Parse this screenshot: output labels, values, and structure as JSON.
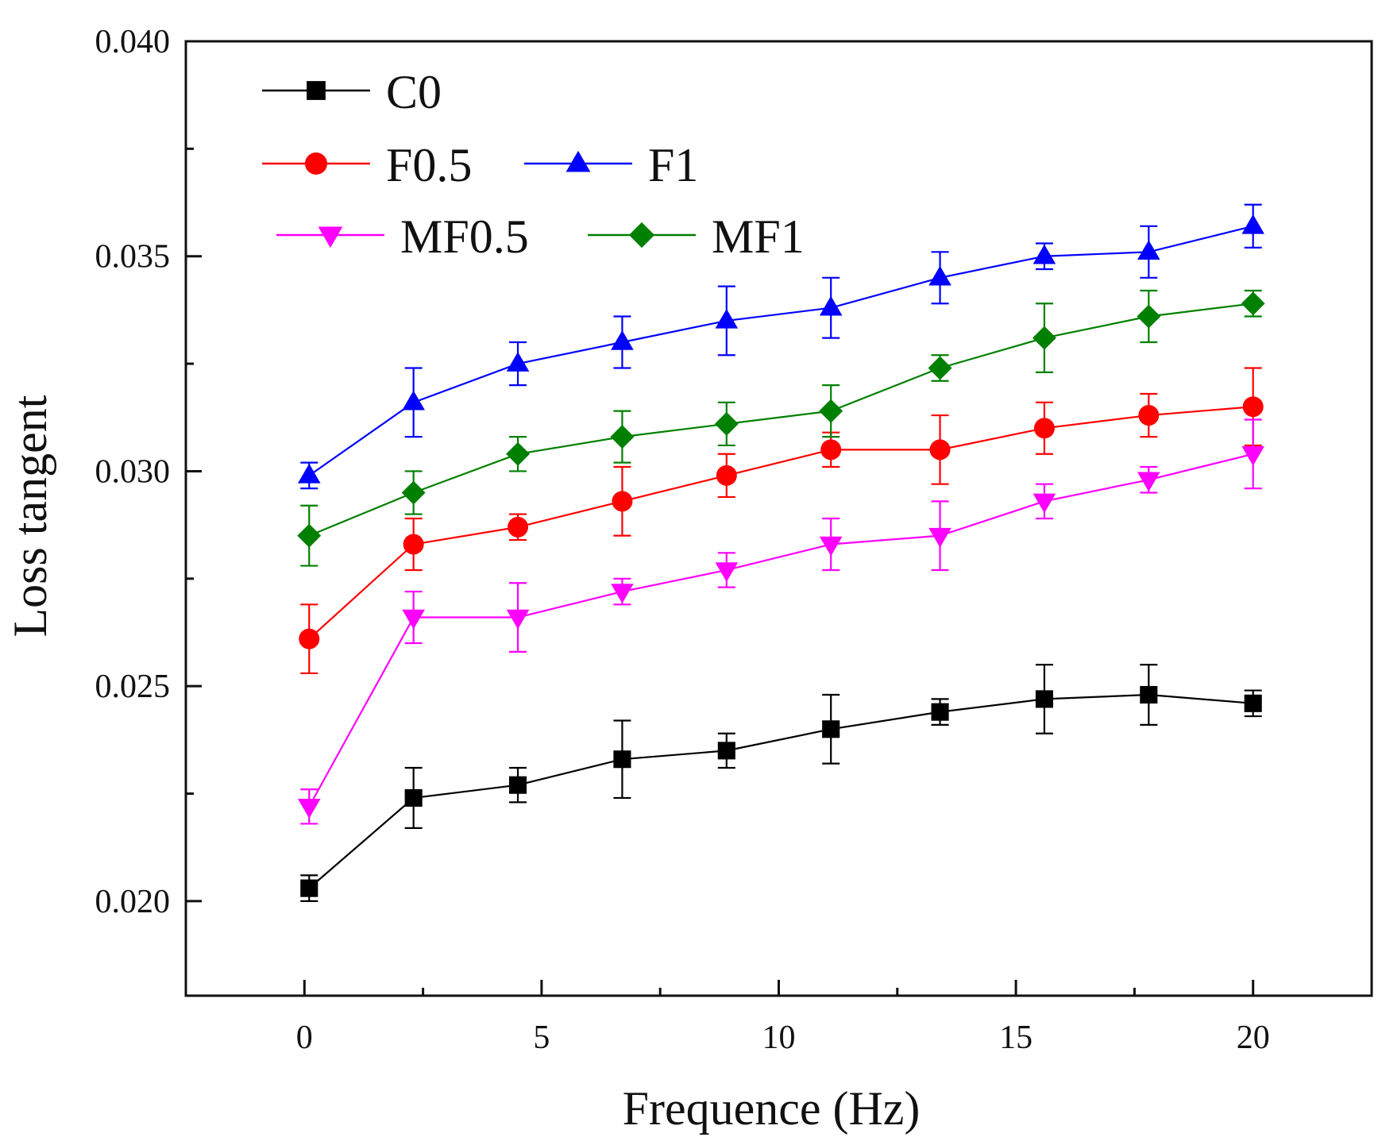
{
  "chart_data": {
    "type": "line",
    "xlabel": "Frequence (Hz)",
    "ylabel": "Loss tangent",
    "xlim": [
      -2.5,
      22.5
    ],
    "ylim": [
      0.0178,
      0.04
    ],
    "xticks": [
      0,
      5,
      10,
      15,
      20
    ],
    "xtick_labels": [
      "0",
      "5",
      "10",
      "15",
      "20"
    ],
    "yticks": [
      0.02,
      0.025,
      0.03,
      0.035,
      0.04
    ],
    "ytick_labels": [
      "0.020",
      "0.025",
      "0.030",
      "0.035",
      "0.040"
    ],
    "grid": false,
    "legend_position": "top-left",
    "x": [
      0.1,
      2.3,
      4.5,
      6.7,
      8.9,
      11.1,
      13.4,
      15.6,
      17.8,
      20.0
    ],
    "series": [
      {
        "name": "C0",
        "color": "#000000",
        "marker": "square",
        "values": [
          0.0203,
          0.0224,
          0.0227,
          0.0233,
          0.0235,
          0.024,
          0.0244,
          0.0247,
          0.0248,
          0.0246
        ],
        "errors": [
          0.0003,
          0.0007,
          0.0004,
          0.0009,
          0.0004,
          0.0008,
          0.0003,
          0.0008,
          0.0007,
          0.0003
        ]
      },
      {
        "name": "F0.5",
        "color": "#ff0000",
        "marker": "circle",
        "values": [
          0.0261,
          0.0283,
          0.0287,
          0.0293,
          0.0299,
          0.0305,
          0.0305,
          0.031,
          0.0313,
          0.0315
        ],
        "errors": [
          0.0008,
          0.0006,
          0.0003,
          0.0008,
          0.0005,
          0.0004,
          0.0008,
          0.0006,
          0.0005,
          0.0009
        ]
      },
      {
        "name": "F1",
        "color": "#0000ff",
        "marker": "triangle-up",
        "values": [
          0.0299,
          0.0316,
          0.0325,
          0.033,
          0.0335,
          0.0338,
          0.0345,
          0.035,
          0.0351,
          0.0357
        ],
        "errors": [
          0.0003,
          0.0008,
          0.0005,
          0.0006,
          0.0008,
          0.0007,
          0.0006,
          0.0003,
          0.0006,
          0.0005
        ]
      },
      {
        "name": "MF0.5",
        "color": "#ff00ff",
        "marker": "triangle-down",
        "values": [
          0.0222,
          0.0266,
          0.0266,
          0.0272,
          0.0277,
          0.0283,
          0.0285,
          0.0293,
          0.0298,
          0.0304
        ],
        "errors": [
          0.0004,
          0.0006,
          0.0008,
          0.0003,
          0.0004,
          0.0006,
          0.0008,
          0.0004,
          0.0003,
          0.0008
        ]
      },
      {
        "name": "MF1",
        "color": "#008000",
        "marker": "diamond",
        "values": [
          0.0285,
          0.0295,
          0.0304,
          0.0308,
          0.0311,
          0.0314,
          0.0324,
          0.0331,
          0.0336,
          0.0339
        ],
        "errors": [
          0.0007,
          0.0005,
          0.0004,
          0.0006,
          0.0005,
          0.0006,
          0.0003,
          0.0008,
          0.0006,
          0.0003
        ]
      }
    ]
  }
}
